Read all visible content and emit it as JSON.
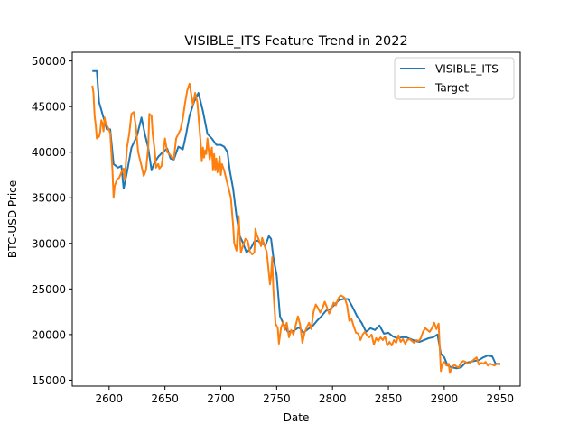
{
  "chart_data": {
    "type": "line",
    "title": "VISIBLE_ITS Feature Trend in 2022",
    "xlabel": "Date",
    "ylabel": "BTC-USD Price",
    "xlim": [
      2567,
      2968
    ],
    "ylim": [
      14350,
      50950
    ],
    "xticks": [
      2600,
      2650,
      2700,
      2750,
      2800,
      2850,
      2900,
      2950
    ],
    "yticks": [
      15000,
      20000,
      25000,
      30000,
      35000,
      40000,
      45000,
      50000
    ],
    "grid": false,
    "legend_position": "top-right",
    "series": [
      {
        "name": "VISIBLE_ITS",
        "color": "#1f77b4",
        "points": [
          [
            2585,
            48900
          ],
          [
            2589,
            48900
          ],
          [
            2591,
            45500
          ],
          [
            2594,
            44200
          ],
          [
            2598,
            42500
          ],
          [
            2601,
            42500
          ],
          [
            2604,
            38700
          ],
          [
            2608,
            38300
          ],
          [
            2611,
            38500
          ],
          [
            2613,
            36000
          ],
          [
            2616,
            37800
          ],
          [
            2620,
            40500
          ],
          [
            2625,
            41800
          ],
          [
            2629,
            43800
          ],
          [
            2632,
            42000
          ],
          [
            2635,
            40500
          ],
          [
            2638,
            38000
          ],
          [
            2640,
            38700
          ],
          [
            2644,
            39500
          ],
          [
            2648,
            40000
          ],
          [
            2652,
            40400
          ],
          [
            2655,
            39300
          ],
          [
            2658,
            39200
          ],
          [
            2662,
            40600
          ],
          [
            2666,
            40300
          ],
          [
            2669,
            42000
          ],
          [
            2672,
            44000
          ],
          [
            2676,
            45500
          ],
          [
            2680,
            46500
          ],
          [
            2684,
            44500
          ],
          [
            2688,
            42000
          ],
          [
            2692,
            41500
          ],
          [
            2696,
            40800
          ],
          [
            2700,
            40800
          ],
          [
            2703,
            40600
          ],
          [
            2706,
            40000
          ],
          [
            2708,
            38000
          ],
          [
            2711,
            36000
          ],
          [
            2714,
            33000
          ],
          [
            2717,
            30800
          ],
          [
            2720,
            30000
          ],
          [
            2723,
            29000
          ],
          [
            2727,
            29500
          ],
          [
            2730,
            30200
          ],
          [
            2733,
            30300
          ],
          [
            2736,
            30000
          ],
          [
            2740,
            29800
          ],
          [
            2743,
            30800
          ],
          [
            2745,
            30500
          ],
          [
            2747,
            28500
          ],
          [
            2750,
            26500
          ],
          [
            2753,
            22000
          ],
          [
            2756,
            21200
          ],
          [
            2760,
            20300
          ],
          [
            2765,
            20400
          ],
          [
            2770,
            20800
          ],
          [
            2774,
            20200
          ],
          [
            2778,
            20600
          ],
          [
            2782,
            20900
          ],
          [
            2786,
            21500
          ],
          [
            2790,
            22000
          ],
          [
            2794,
            22600
          ],
          [
            2798,
            22800
          ],
          [
            2802,
            23300
          ],
          [
            2806,
            23800
          ],
          [
            2810,
            23900
          ],
          [
            2814,
            23900
          ],
          [
            2818,
            23000
          ],
          [
            2822,
            22000
          ],
          [
            2826,
            21300
          ],
          [
            2830,
            20300
          ],
          [
            2834,
            20700
          ],
          [
            2838,
            20500
          ],
          [
            2842,
            21000
          ],
          [
            2846,
            20100
          ],
          [
            2850,
            20200
          ],
          [
            2854,
            19800
          ],
          [
            2858,
            19600
          ],
          [
            2862,
            19700
          ],
          [
            2866,
            19700
          ],
          [
            2870,
            19500
          ],
          [
            2874,
            19300
          ],
          [
            2878,
            19200
          ],
          [
            2882,
            19400
          ],
          [
            2886,
            19600
          ],
          [
            2890,
            19700
          ],
          [
            2894,
            20000
          ],
          [
            2897,
            17900
          ],
          [
            2900,
            17500
          ],
          [
            2903,
            16600
          ],
          [
            2907,
            16400
          ],
          [
            2911,
            16300
          ],
          [
            2915,
            16400
          ],
          [
            2919,
            16900
          ],
          [
            2923,
            17000
          ],
          [
            2927,
            17100
          ],
          [
            2931,
            17200
          ],
          [
            2935,
            17500
          ],
          [
            2939,
            17700
          ],
          [
            2943,
            17600
          ],
          [
            2946,
            16800
          ],
          [
            2950,
            16800
          ]
        ]
      },
      {
        "name": "Target",
        "color": "#ff7f0e",
        "points": [
          [
            2585,
            47300
          ],
          [
            2586,
            46500
          ],
          [
            2587,
            44000
          ],
          [
            2588,
            43000
          ],
          [
            2589,
            41500
          ],
          [
            2591,
            41700
          ],
          [
            2592,
            42200
          ],
          [
            2593,
            43500
          ],
          [
            2594,
            43200
          ],
          [
            2595,
            42300
          ],
          [
            2596,
            43800
          ],
          [
            2597,
            43100
          ],
          [
            2599,
            42700
          ],
          [
            2601,
            42100
          ],
          [
            2603,
            38000
          ],
          [
            2604,
            35000
          ],
          [
            2605,
            36300
          ],
          [
            2607,
            37000
          ],
          [
            2609,
            37200
          ],
          [
            2611,
            37800
          ],
          [
            2613,
            38200
          ],
          [
            2614,
            37000
          ],
          [
            2616,
            40500
          ],
          [
            2618,
            42000
          ],
          [
            2620,
            44200
          ],
          [
            2622,
            44400
          ],
          [
            2624,
            42800
          ],
          [
            2626,
            40000
          ],
          [
            2628,
            39000
          ],
          [
            2629,
            38500
          ],
          [
            2631,
            37400
          ],
          [
            2633,
            38000
          ],
          [
            2635,
            40500
          ],
          [
            2636,
            44200
          ],
          [
            2638,
            44000
          ],
          [
            2639,
            42000
          ],
          [
            2641,
            40000
          ],
          [
            2642,
            38300
          ],
          [
            2644,
            38700
          ],
          [
            2645,
            38200
          ],
          [
            2647,
            38500
          ],
          [
            2648,
            39500
          ],
          [
            2650,
            41500
          ],
          [
            2652,
            40000
          ],
          [
            2654,
            39800
          ],
          [
            2656,
            39500
          ],
          [
            2658,
            39300
          ],
          [
            2660,
            41500
          ],
          [
            2662,
            42000
          ],
          [
            2664,
            42500
          ],
          [
            2666,
            43700
          ],
          [
            2668,
            45400
          ],
          [
            2670,
            46800
          ],
          [
            2672,
            47500
          ],
          [
            2674,
            46000
          ],
          [
            2675,
            45200
          ],
          [
            2677,
            46500
          ],
          [
            2679,
            45500
          ],
          [
            2680,
            44000
          ],
          [
            2681,
            42500
          ],
          [
            2682,
            41000
          ],
          [
            2683,
            39000
          ],
          [
            2684,
            40500
          ],
          [
            2685,
            39400
          ],
          [
            2686,
            40200
          ],
          [
            2687,
            39800
          ],
          [
            2688,
            41500
          ],
          [
            2690,
            39200
          ],
          [
            2692,
            40500
          ],
          [
            2693,
            38000
          ],
          [
            2694,
            39800
          ],
          [
            2695,
            38000
          ],
          [
            2696,
            39300
          ],
          [
            2697,
            37800
          ],
          [
            2699,
            39500
          ],
          [
            2700,
            37500
          ],
          [
            2701,
            38700
          ],
          [
            2703,
            38000
          ],
          [
            2705,
            37000
          ],
          [
            2707,
            36000
          ],
          [
            2709,
            35000
          ],
          [
            2711,
            32000
          ],
          [
            2712,
            30000
          ],
          [
            2714,
            29200
          ],
          [
            2715,
            31000
          ],
          [
            2716,
            33000
          ],
          [
            2717,
            30500
          ],
          [
            2718,
            29000
          ],
          [
            2720,
            29800
          ],
          [
            2722,
            30500
          ],
          [
            2724,
            30300
          ],
          [
            2726,
            29100
          ],
          [
            2728,
            28800
          ],
          [
            2730,
            29000
          ],
          [
            2731,
            31600
          ],
          [
            2732,
            31000
          ],
          [
            2734,
            30400
          ],
          [
            2736,
            29700
          ],
          [
            2737,
            30600
          ],
          [
            2739,
            29800
          ],
          [
            2741,
            29100
          ],
          [
            2742,
            28000
          ],
          [
            2744,
            25500
          ],
          [
            2745,
            26500
          ],
          [
            2746,
            28500
          ],
          [
            2747,
            25000
          ],
          [
            2748,
            23000
          ],
          [
            2749,
            21200
          ],
          [
            2751,
            20700
          ],
          [
            2752,
            19000
          ],
          [
            2754,
            20800
          ],
          [
            2756,
            21400
          ],
          [
            2757,
            20500
          ],
          [
            2759,
            21300
          ],
          [
            2761,
            19700
          ],
          [
            2763,
            20500
          ],
          [
            2765,
            20000
          ],
          [
            2767,
            21000
          ],
          [
            2769,
            22000
          ],
          [
            2771,
            21100
          ],
          [
            2773,
            19100
          ],
          [
            2775,
            20200
          ],
          [
            2777,
            20800
          ],
          [
            2779,
            21300
          ],
          [
            2781,
            20600
          ],
          [
            2783,
            22500
          ],
          [
            2785,
            23300
          ],
          [
            2787,
            22900
          ],
          [
            2789,
            22400
          ],
          [
            2791,
            22900
          ],
          [
            2793,
            23600
          ],
          [
            2795,
            23000
          ],
          [
            2797,
            22300
          ],
          [
            2799,
            22800
          ],
          [
            2801,
            23500
          ],
          [
            2803,
            23200
          ],
          [
            2805,
            23900
          ],
          [
            2807,
            24300
          ],
          [
            2809,
            24200
          ],
          [
            2811,
            24000
          ],
          [
            2813,
            23200
          ],
          [
            2815,
            21500
          ],
          [
            2817,
            21700
          ],
          [
            2819,
            20900
          ],
          [
            2821,
            20200
          ],
          [
            2823,
            20100
          ],
          [
            2825,
            19400
          ],
          [
            2827,
            20000
          ],
          [
            2829,
            20300
          ],
          [
            2831,
            19900
          ],
          [
            2833,
            19700
          ],
          [
            2835,
            20000
          ],
          [
            2837,
            18900
          ],
          [
            2839,
            19600
          ],
          [
            2841,
            19300
          ],
          [
            2843,
            19700
          ],
          [
            2845,
            19400
          ],
          [
            2847,
            19800
          ],
          [
            2849,
            18800
          ],
          [
            2851,
            19200
          ],
          [
            2853,
            18800
          ],
          [
            2855,
            19400
          ],
          [
            2857,
            19100
          ],
          [
            2859,
            19900
          ],
          [
            2861,
            19200
          ],
          [
            2863,
            19500
          ],
          [
            2865,
            19000
          ],
          [
            2867,
            19400
          ],
          [
            2869,
            19500
          ],
          [
            2871,
            19300
          ],
          [
            2873,
            19100
          ],
          [
            2875,
            19400
          ],
          [
            2877,
            19300
          ],
          [
            2879,
            19600
          ],
          [
            2881,
            20300
          ],
          [
            2883,
            20700
          ],
          [
            2885,
            20500
          ],
          [
            2887,
            20300
          ],
          [
            2889,
            20700
          ],
          [
            2891,
            21300
          ],
          [
            2893,
            20600
          ],
          [
            2895,
            21200
          ],
          [
            2896,
            18500
          ],
          [
            2897,
            16000
          ],
          [
            2898,
            16700
          ],
          [
            2900,
            17000
          ],
          [
            2902,
            16600
          ],
          [
            2904,
            16800
          ],
          [
            2905,
            15800
          ],
          [
            2907,
            16400
          ],
          [
            2909,
            16700
          ],
          [
            2911,
            16500
          ],
          [
            2913,
            16400
          ],
          [
            2915,
            16900
          ],
          [
            2917,
            17100
          ],
          [
            2919,
            17000
          ],
          [
            2921,
            16800
          ],
          [
            2923,
            16900
          ],
          [
            2925,
            17100
          ],
          [
            2927,
            17300
          ],
          [
            2929,
            17500
          ],
          [
            2931,
            16700
          ],
          [
            2933,
            16900
          ],
          [
            2935,
            16800
          ],
          [
            2937,
            17000
          ],
          [
            2939,
            16600
          ],
          [
            2941,
            16800
          ],
          [
            2943,
            16700
          ],
          [
            2945,
            16600
          ],
          [
            2947,
            16800
          ],
          [
            2950,
            16700
          ]
        ]
      }
    ]
  }
}
